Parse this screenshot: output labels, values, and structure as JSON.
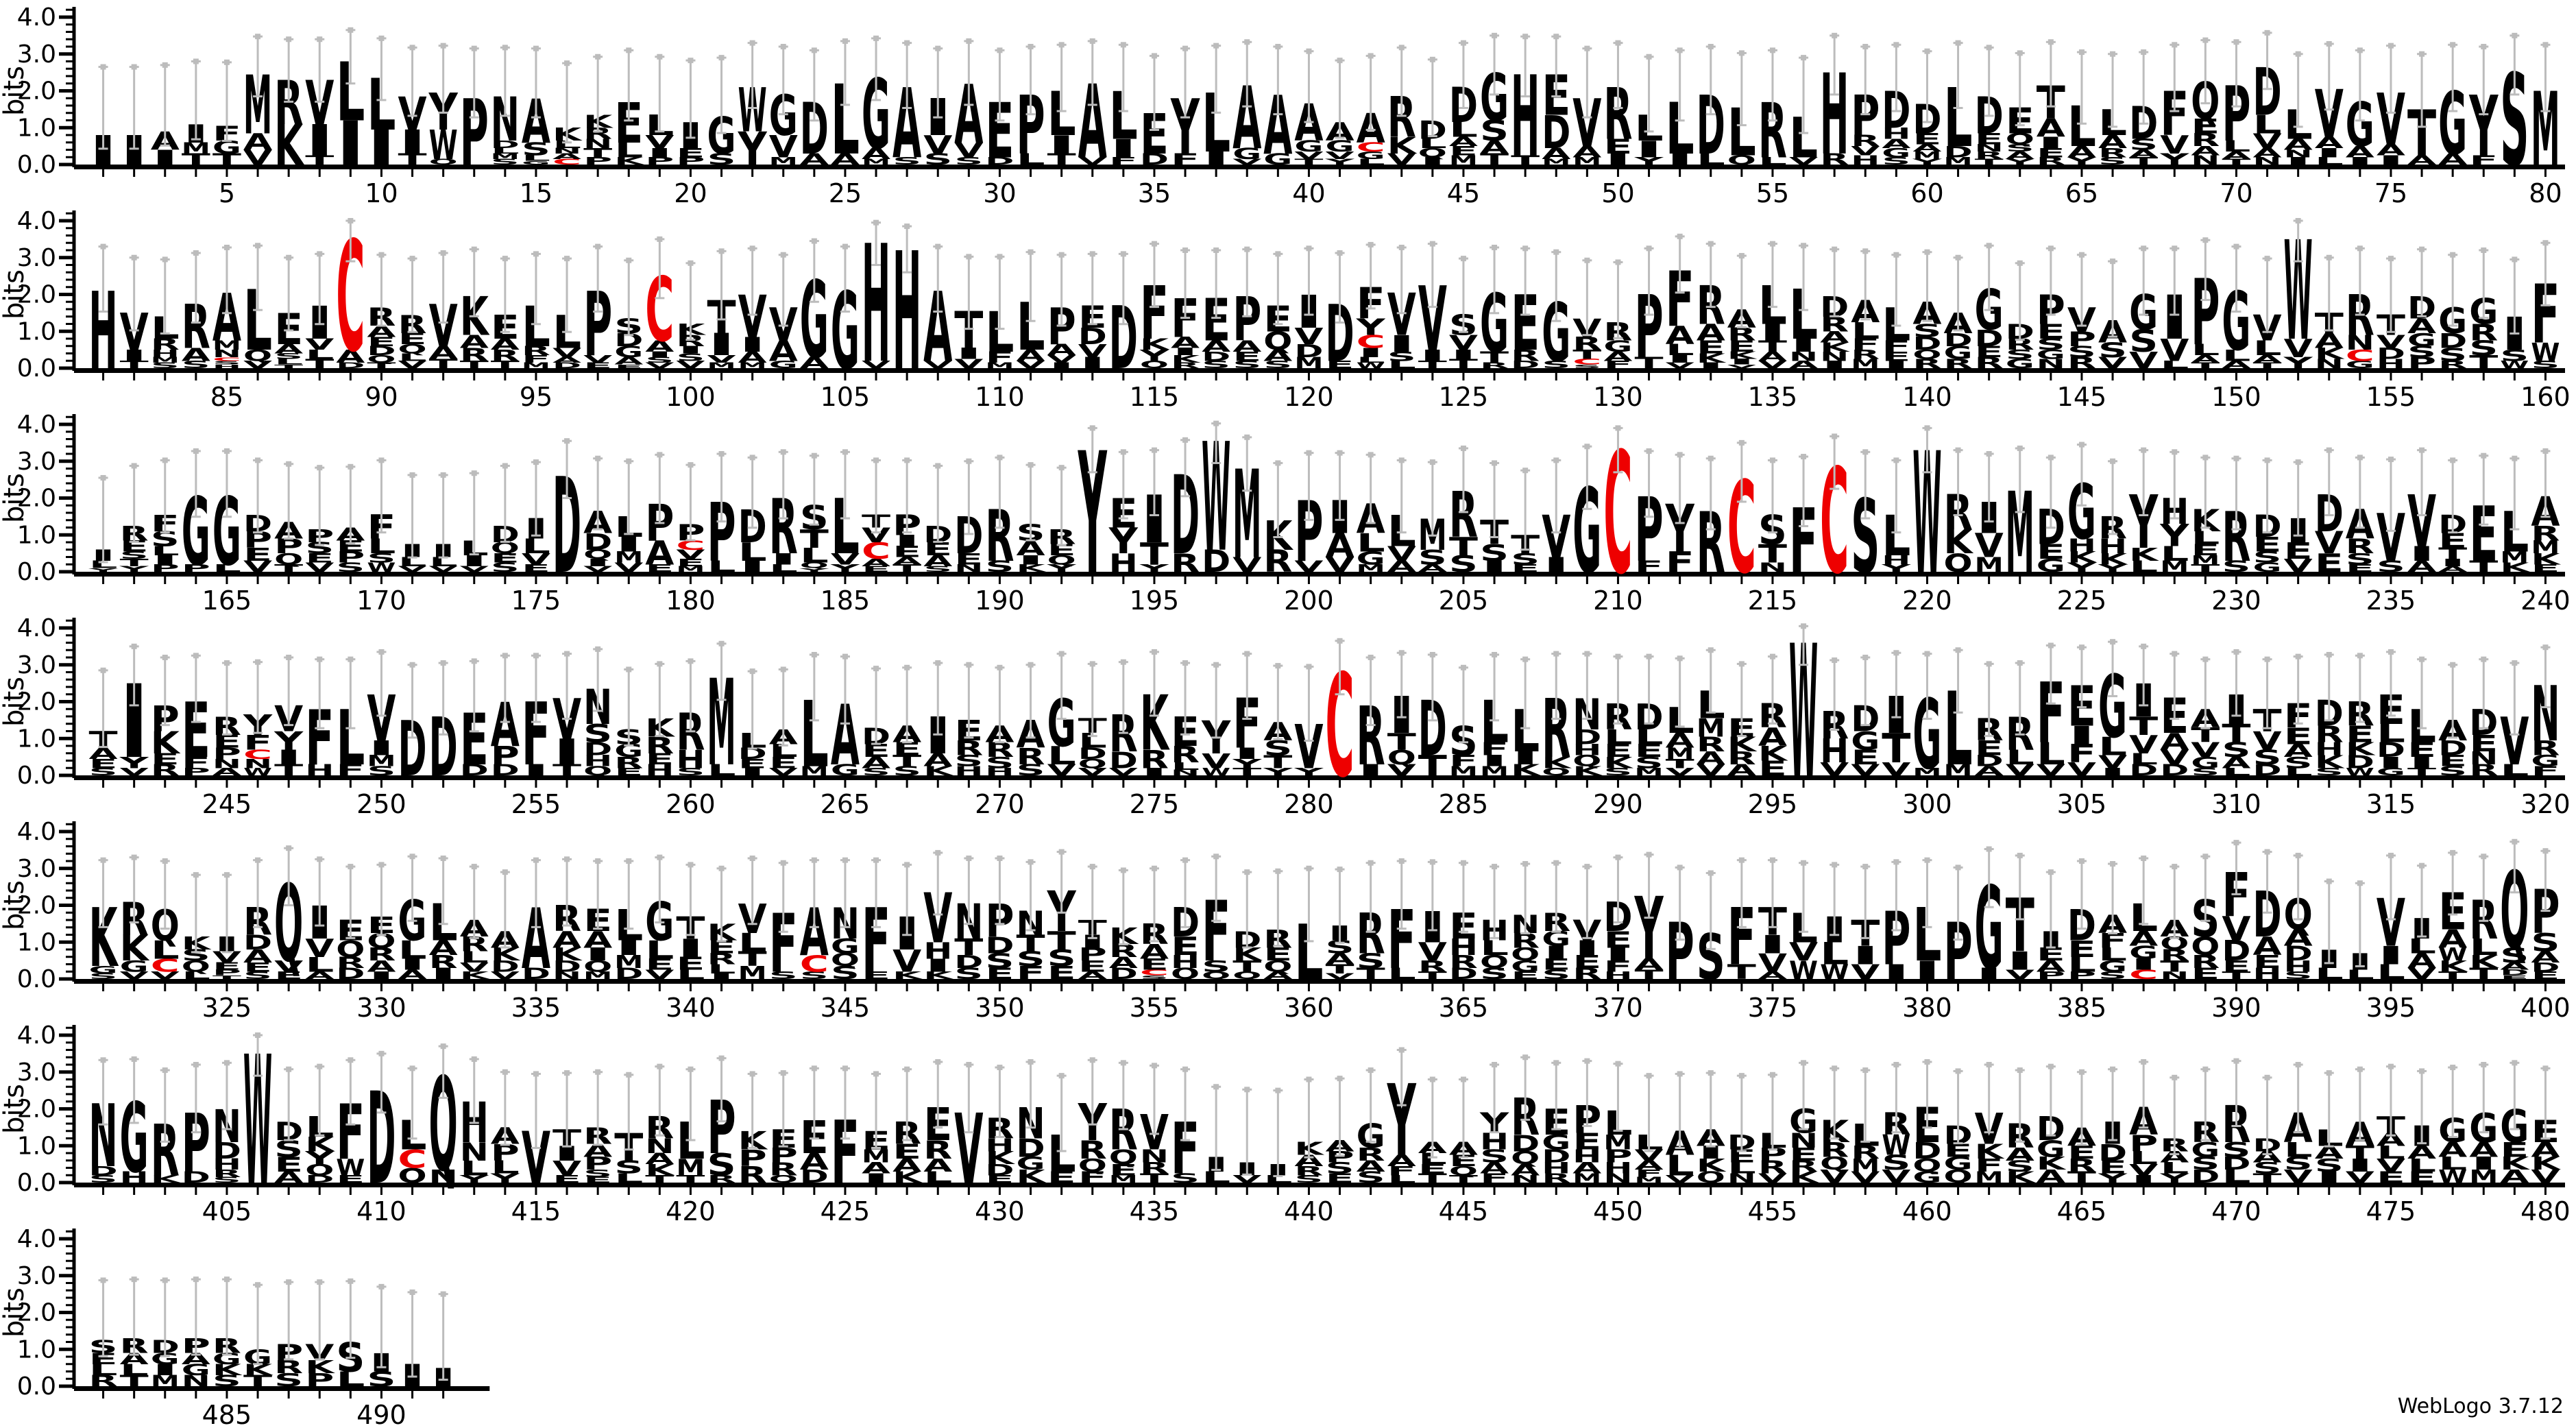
{
  "watermark": "WebLogo 3.7.12",
  "colors": {
    "letter_default": "#000000",
    "letter_C": "#ee0000",
    "errorbar": "#bcbcbc",
    "axis": "#000000"
  },
  "chart_data": {
    "type": "sequence-logo",
    "ylabel": "bits",
    "yticks": [
      "0.0",
      "1.0",
      "2.0",
      "3.0",
      "4.0"
    ],
    "ylim": [
      0,
      4.3
    ],
    "xtick_step": 5,
    "grid": false,
    "legend": "none",
    "rows": [
      {
        "start": 1,
        "stacks": [
          "I:0.8",
          "I:0.8",
          "A:0.5,I:0.4",
          "I:0.5,M:0.3,T:0.3",
          "F:0.4,G:0.35,T:0.3",
          "M:1.6,A:0.45,V:0.4",
          "R:1.2,K:1.1",
          "V:1.2,I:0.85,T:0.25",
          "L:1.6,I:1.2",
          "L:1.4,I:0.95",
          "V:0.9,I:0.65,T:0.3",
          "Y:1.0,W:0.8,Q:0.15",
          "P:1.8",
          "N:1.2,D:0.2,L:0.15,M:0.15,S:0.15",
          "A:1.2,S:0.35,L:0.15,G:0.1",
          "K:0.35,L:0.2,N:0.15,A:0.15,C:0.15",
          "K:0.35,R:0.3,N:0.25,T:0.25,P:0.2",
          "E:1.1,L:0.4,K:0.2",
          "L:0.55,V:0.35,I:0.25,P:0.2",
          "I:0.7,E:0.25,P:0.2",
          "G:1.0,S:0.3",
          "W:1.2,Y:0.9",
          "G:1.1,V:0.6,M:0.2",
          "D:1.4,A:0.3",
          "L:1.9,A:0.3",
          "G:1.9,A:0.3,M:0.15",
          "A:1.9,S:0.2",
          "I:1.0,V:0.5,S:0.3",
          "A:1.6,V:0.4,S:0.2",
          "E:1.5,D:0.2",
          "P:1.6,L:0.3",
          "L:1.2,I:0.5,T:0.3",
          "A:2.0,V:0.2",
          "L:1.3,I:0.5,F:0.2",
          "E:1.1,D:0.3",
          "Y:1.5,F:0.3",
          "L:1.6,I:0.35",
          "A:1.7,G:0.3,V:0.15",
          "A:1.6,G:0.3",
          "A:1.0,G:0.3,V:0.2,T:0.15",
          "A:0.5,G:0.3,V:0.2,Y:0.15",
          "A:0.8,C:0.25,G:0.2,L:0.15",
          "R:1.1,K:0.45,V:0.3",
          "D:0.5,L:0.25,Q:0.25,I:0.2",
          "D:0.95,L:0.4,A:0.25,E:0.25,M:0.25",
          "G:1.3,S:0.55,A:0.35,T:0.3",
          "H:2.2,T:0.25",
          "E:1.1,D:0.9,A:0.3,M:0.15",
          "V:1.3,A:0.3,M:0.2",
          "R:1.4,E:0.4,I:0.3",
          "L:0.7,I:0.45,Y:0.2",
          "L:1.4,I:0.3",
          "D:1.6,L:0.3",
          "L:1.3,Q:0.25",
          "R:1.5,L:0.2",
          "L:1.1,V:0.2",
          "H:2.2,R:0.3",
          "P:1.1,R:0.3,V:0.25,H:0.25",
          "D:1.0,H:0.3,A:0.25,G:0.25,S:0.2",
          "D:0.8,E:0.3,A:0.2,M:0.2,Y:0.15",
          "L:1.6,D:0.3,M:0.2",
          "D:1.0,E:0.3,N:0.2,R:0.2,T:0.15",
          "E:0.7,Q:0.3,S:0.2,A:0.2,Y:0.15",
          "T:0.9,A:0.5,I:0.3,E:0.25,R:0.2",
          "L:1.1,A:0.3,Y:0.2",
          "L:0.7,A:0.35,R:0.25,S:0.2",
          "D:0.9,S:0.3,A:0.2,T:0.2",
          "F:1.2,V:0.5,Y:0.3",
          "Q:1.0,E:0.4,R:0.35,A:0.25,N:0.25",
          "P:1.5,L:0.3,A:0.2,T:0.15",
          "D:1.3,L:0.5,V:0.4,A:0.25,N:0.2",
          "L:0.8,A:0.3,N:0.2,I:0.2",
          "V:1.3,A:0.3,I:0.25,L:0.2",
          "G:1.2,A:0.3,I:0.2",
          "V:1.4,A:0.3,I:0.25",
          "T:1.25,A:0.25",
          "G:1.7,A:0.3",
          "Y:1.65,F:0.25",
          "S:2.5",
          "M:2.0"
        ]
      },
      {
        "start": 81,
        "stacks": [
          "H:2.1",
          "V:1.0,I:0.3,T:0.2",
          "L:0.6,R:0.3,H:0.2,M:0.15,S:0.15",
          "R:1.2,A:0.35,S:0.2",
          "A:1.3,M:0.25,N:0.2,C:0.1,S:0.1,H:0.1",
          "L:1.65,Q:0.3,V:0.2",
          "E:0.85,A:0.25,S:0.15,L:0.15,T:0.1",
          "I:0.9,V:0.3,L:0.25,T:0.25",
          "C:3.0,A:0.35,D:0.15",
          "R:0.5,A:0.3,E:0.25,D:0.25,Q:0.2,T:0.15",
          "R:0.5,E:0.3,Q:0.25,L:0.2,V:0.2",
          "V:1.15,A:0.35,T:0.25",
          "K:1.05,A:0.35,R:0.35,T:0.2",
          "E:0.65,A:0.3,R:0.3,T:0.2",
          "L:1.1,R:0.25,F:0.2,M:0.15",
          "L:0.9,V:0.25,A:0.15,D:0.15",
          "P:1.75,V:0.2,E:0.15",
          "S:0.4,D:0.35,G:0.3,A:0.2,E:0.1",
          "C:1.75,A:0.3,I:0.15,S:0.15,V:0.15",
          "K:0.3,R:0.3,I:0.2,S:0.2,V:0.2",
          "T:0.9,I:0.6,V:0.2,M:0.15",
          "V:1.15,I:0.4,A:0.3,M:0.15",
          "V:0.9,A:0.55,G:0.2",
          "G:2.1,A:0.3",
          "G:2.1",
          "H:3.2,V:0.2",
          "H:3.2",
          "A:1.9,V:0.2",
          "T:1.0,I:0.3,V:0.25",
          "L:1.1,F:0.3,M:0.15",
          "L:1.3,A:0.3,V:0.2",
          "P:1.0,A:0.3,V:0.2,I:0.15",
          "E:0.6,D:0.45,V:0.35,I:0.3",
          "D:1.7",
          "F:1.45,K:0.3,Y:0.3,Q:0.2",
          "F:1.05,A:0.3,I:0.2,K:0.2,R:0.15",
          "E:1.15,A:0.3,D:0.25,S:0.2",
          "P:1.2,A:0.3,E:0.25,S:0.2",
          "E:0.7,Q:0.5,A:0.3,S:0.2",
          "I:0.9,V:0.45,D:0.35,M:0.3",
          "D:1.55,E:0.2",
          "F:0.85,Y:0.45,C:0.35,I:0.25,L:0.15,W:0.15",
          "V:1.15,I:0.45,S:0.25,L:0.2",
          "V:1.75,I:0.3,T:0.2",
          "S:0.55,V:0.4,I:0.25,T:0.25",
          "G:1.6,T:0.3,R:0.15",
          "E:1.5,R:0.3,D:0.2",
          "G:1.6,S:0.2",
          "V:0.5,R:0.35,T:0.25,C:0.15,S:0.1",
          "R:0.5,G:0.3,A:0.25,F:0.2",
          "P:1.7,T:0.3",
          "F:1.5,A:0.5,L:0.3,I:0.2,V:0.15",
          "R:1.05,A:0.45,E:0.35,K:0.25,I:0.15",
          "A:0.5,R:0.35,E:0.3,K:0.2,I:0.15,V:0.1",
          "L:1.05,I:0.45,T:0.3,A:0.25,V:0.2",
          "L:1.35,I:0.35,N:0.25,A:0.2",
          "D:0.55,R:0.4,A:0.3,K:0.25,N:0.25,I:0.2",
          "A:0.6,L:0.45,F:0.3,R:0.25,M:0.25",
          "L:0.9,F:0.3,E:0.25,I:0.2",
          "A:0.6,S:0.35,D:0.35,Q:0.25,R:0.25",
          "A:0.55,D:0.35,G:0.35,R:0.25",
          "G:1.1,D:0.45,E:0.3,R:0.3",
          "D:0.4,R:0.3,S:0.25,G:0.25",
          "P:0.8,E:0.4,S:0.3,G:0.25,N:0.25",
          "V:0.65,P:0.4,S:0.3,R:0.3",
          "A:0.6,S:0.4,V:0.3",
          "G:0.95,S:0.6,V:0.45",
          "I:1.2,V:0.6,L:0.2",
          "P:1.8,L:0.3,A:0.2,T:0.15",
          "G:1.6,L:0.3,A:0.2",
          "V:0.7,L:0.4,A:0.2,T:0.15",
          "W:2.7,V:0.5,Y:0.3",
          "T:0.55,A:0.4,K:0.3,N:0.25",
          "R:1.1,N:0.4,C:0.3,G:0.2",
          "T:0.55,V:0.35,D:0.3,H:0.25",
          "D:0.6,A:0.4,G:0.35,S:0.3,P:0.3",
          "G:0.7,D:0.4,S:0.35,R:0.2",
          "G:0.7,R:0.45,S:0.4,T:0.35",
          "I:0.9,S:0.3,W:0.2",
          "F:1.6,W:0.5,S:0.2"
        ]
      },
      {
        "start": 161,
        "stacks": [
          "I:0.3,L:0.2,Y:0.1",
          "R:0.4,E:0.3,S:0.2,T:0.2,Y:0.15",
          "F:0.45,S:0.4,L:0.25,I:0.25,P:0.2",
          "G:1.85,P:0.2",
          "G:1.85,L:0.2",
          "D:0.45,P:0.45,E:0.35,V:0.3",
          "A:0.45,P:0.4,Q:0.3,T:0.2",
          "P:0.35,S:0.3,E:0.25,V:0.25",
          "A:0.35,E:0.3,P:0.3,S:0.25",
          "F:0.65,L:0.4,S:0.25,W:0.25",
          "I:0.35,L:0.25,V:0.15",
          "I:0.35,L:0.25,V:0.15",
          "L:0.4,I:0.3,V:0.15",
          "D:0.45,Q:0.3,E:0.25,S:0.25",
          "I:0.55,L:0.4,V:0.3,E:0.2",
          "D:2.6",
          "A:0.6,D:0.45,Q:0.25,I:0.2,V:0.15",
          "L:0.55,I:0.4,M:0.3,V:0.25",
          "P:1.0,A:0.65,E:0.2",
          "P:0.45,C:0.25,V:0.25,E:0.2,M:0.15",
          "P:1.6,L:0.3",
          "D:0.9,L:0.5,I:0.3",
          "R:1.5,I:0.3,L:0.2",
          "S:0.65,T:0.5,L:0.4,Q:0.15,Y:0.1",
          "L:1.5,V:0.3,Y:0.2",
          "T:0.35,V:0.4,C:0.45,A:0.2,E:0.15",
          "P:0.55,I:0.3,E:0.3,A:0.2,T:0.2",
          "D:0.45,E:0.35,A:0.3,S:0.15",
          "D:1.0,E:0.3,N:0.2",
          "R:1.4,S:0.3",
          "S:0.45,A:0.4,I:0.25,K:0.2",
          "R:0.4,E:0.3,Q:0.25,Y:0.2",
          "Y:3.3",
          "E:0.8,Y:0.7,H:0.5",
          "I:1.3,T:0.6,Y:0.2",
          "D:2.15,R:0.5",
          "W:2.95,D:0.6",
          "M:2.4,V:0.4",
          "K:0.8,R:0.6",
          "P:1.65,V:0.3",
          "I:0.9,A:0.65,V:0.4",
          "A:0.8,L:0.5,G:0.35,M:0.2",
          "L:0.85,V:0.4,A:0.3",
          "M:0.85,S:0.4,A:0.2",
          "R:1.25,T:0.5,S:0.45",
          "T:0.65,S:0.45,I:0.3",
          "T:0.5,S:0.3,E:0.2",
          "V:1.15,I:0.4",
          "G:2.3",
          "C:3.3",
          "P:1.75,F:0.3",
          "Y:1.3,F:0.55",
          "R:1.65",
          "C:2.5",
          "S:0.8,T:0.5,N:0.25",
          "F:1.75",
          "C:2.85",
          "S:2.0",
          "L:1.1,H:0.25,Y:0.2",
          "W:3.3",
          "R:0.95,K:0.65,Q:0.5",
          "I:0.85,V:0.65,M:0.4",
          "M:2.2",
          "D:0.95,E:0.4,G:0.35",
          "G:1.5,H:0.35,K:0.3,Y:0.25",
          "R:0.6,H:0.4,K:0.3,Y:0.2",
          "Y:1.45,K:0.35,L:0.3",
          "H:0.7,Y:0.6,L:0.4,M:0.3",
          "K:0.6,L:0.35,E:0.3,M:0.25,T:0.2",
          "R:1.35,S:0.3",
          "D:0.6,E:0.4,S:0.3,G:0.25",
          "I:0.65,E:0.45,V:0.35",
          "D:1.0,V:0.6,E:0.5",
          "A:0.8,R:0.4,S:0.3,E:0.2",
          "V:1.3,S:0.3",
          "V:1.4,I:0.4,A:0.3",
          "D:0.5,E:0.4,T:0.3,I:0.2,A:0.15",
          "E:1.5,T:0.3",
          "L:1.1,M:0.3,K:0.25",
          "A:0.8,R:0.4,M:0.35,K:0.3,E:0.2"
        ]
      },
      {
        "start": 241,
        "stacks": [
          "T:0.45,A:0.3,E:0.25,S:0.2",
          "I:2.0,Y:0.3,V:0.2",
          "P:0.7,K:0.6,E:0.3,R:0.3",
          "E:1.5,F:0.3,P:0.2",
          "R:0.5,E:0.35,P:0.3,N:0.25,A:0.2",
          "Y:0.55,F:0.4,C:0.25,N:0.25,W:0.2",
          "V:0.7,Y:0.5,I:0.4,T:0.3",
          "F:1.5,H:0.3",
          "L:1.5,F:0.3",
          "V:1.25,I:0.4,M:0.3,S:0.25",
          "D:1.5",
          "D:1.6",
          "E:1.4,D:0.3",
          "A:1.2,P:0.5,D:0.3",
          "F:1.7,I:0.3",
          "V:1.1,I:0.7,T:0.3",
          "N:0.95,S:0.5,D:0.35,H:0.3,Q:0.25",
          "S:0.4,G:0.35,R:0.3,E:0.2",
          "K:0.5,R:0.45,E:0.3,H:0.3",
          "R:1.0,H:0.5,S:0.2",
          "M:2.35,L:0.3",
          "L:0.4,D:0.3,E:0.25,I:0.2",
          "A:0.4,L:0.35,E:0.3,V:0.2",
          "L:1.8,M:0.25",
          "A:1.65,G:0.3",
          "D:0.45,E:0.35,A:0.3,S:0.2",
          "A:0.45,E:0.35,T:0.3,S:0.25",
          "I:1.0,A:0.35,K:0.25",
          "E:0.55,R:0.4,S:0.3,H:0.25",
          "A:0.45,R:0.4,S:0.3,H:0.2",
          "A:0.75,R:0.45,S:0.3",
          "G:1.3,L:0.5,V:0.3",
          "T:0.4,L:0.4,D:0.3,Q:0.25,V:0.2",
          "R:1.0,D:0.45,V:0.2",
          "K:1.5,R:0.5,I:0.2",
          "E:0.8,R:0.45,L:0.2,N:0.15",
          "Y:0.9,V:0.4,W:0.2",
          "F:1.35,I:0.3,Y:0.25,T:0.2",
          "A:0.5,S:0.4,T:0.35,Y:0.2",
          "V:1.2,Y:0.2",
          "C:2.8",
          "R:1.6,I:0.3",
          "I:1.0,T:0.45,Q:0.4,V:0.3",
          "D:1.5,T:0.55",
          "S:0.8,F:0.3,M:0.25",
          "L:1.15,F:0.35,I:0.3,M:0.25",
          "L:1.15,I:0.35,K:0.3",
          "R:1.6,K:0.3,Q:0.2",
          "N:0.85,D:0.4,H:0.3,Q:0.3,K:0.25",
          "R:0.7,L:0.4,E:0.35,K:0.3,S:0.2",
          "D:0.7,L:0.4,E:0.35,S:0.3,M:0.2",
          "L:0.7,A:0.4,M:0.3,T:0.25,V:0.2",
          "L:0.75,M:0.5,R:0.4,A:0.35,V:0.3",
          "E:0.5,K:0.4,R:0.35,A:0.3",
          "R:0.65,A:0.5,K:0.4,E:0.4",
          "W:3.6",
          "R:0.75,H:0.65,V:0.35",
          "D:0.7,G:0.5,E:0.4,V:0.3",
          "I:1.0,T:0.8,V:0.35",
          "G:1.9,M:0.2",
          "L:2.0,M:0.3",
          "R:0.6,E:0.4,D:0.3,A:0.25",
          "R:0.9,L:0.4,V:0.3",
          "F:1.65,L:0.6,V:0.3",
          "E:1.1,I:0.5,F:0.5,V:0.35",
          "G:1.7,L:0.5,V:0.35,I:0.2",
          "I:0.9,T:0.5,V:0.5,L:0.3,D:0.3",
          "E:0.95,A:0.45,V:0.4,D:0.3",
          "A:0.5,T:0.4,V:0.4,G:0.3,S:0.2",
          "I:0.8,T:0.5,S:0.4,A:0.3,L:0.2",
          "T:0.6,V:0.5,S:0.4,D:0.3",
          "F:0.65,E:0.45,A:0.35,S:0.3,L:0.2",
          "D:0.7,R:0.45,H:0.35,K:0.35,S:0.2",
          "R:0.65,E:0.45,K:0.35,D:0.35,W:0.2",
          "E:0.8,L:0.5,D:0.4,I:0.3,G:0.2",
          "L:0.9,E:0.4,I:0.3,T:0.2",
          "A:0.55,D:0.4,E:0.3,S:0.25",
          "D:0.7,E:0.45,N:0.35,R:0.3",
          "V:1.3,L:0.3",
          "N:1.5,R:0.4,G:0.3,F:0.25"
        ]
      },
      {
        "start": 321,
        "stacks": [
          "K:1.6,G:0.2,S:0.15",
          "R:0.9,K:0.7,G:0.3,V:0.2",
          "Q:0.85,L:0.5,C:0.35,V:0.2",
          "K:0.35,S:0.3,Q:0.3,L:0.2",
          "I:0.4,V:0.3,E:0.2,P:0.15,T:0.1",
          "R:0.75,D:0.4,A:0.35,E:0.25,S:0.2",
          "Q:2.1,V:0.3,E:0.2",
          "I:0.9,V:0.5,L:0.4,A:0.2",
          "E:0.55,Q:0.45,R:0.3,D:0.3",
          "E:0.45,Q:0.4,R:0.35,A:0.3,I:0.2",
          "G:1.1,L:0.5,I:0.3,A:0.25",
          "L:1.0,A:0.4,R:0.35,I:0.3",
          "A:0.45,R:0.4,L:0.3,V:0.25,K:0.2",
          "A:0.45,K:0.35,D:0.3,V:0.2",
          "A:1.65,D:0.3",
          "R:0.7,A:0.45,K:0.35,D:0.3,N:0.2",
          "E:0.6,A:0.45,I:0.35,Q:0.3,M:0.2",
          "L:0.85,I:0.4,M:0.35,D:0.3",
          "G:1.05,L:0.5,E:0.3,V:0.25",
          "T:0.6,I:0.5,E:0.35,L:0.25",
          "K:0.45,E:0.35,R:0.3,L:0.25,I:0.15",
          "V:0.8,L:0.5,T:0.4,M:0.35",
          "F:1.6,S:0.2",
          "A:1.3,C:0.45,S:0.2",
          "N:0.85,G:0.4,Q:0.35,S:0.35",
          "F:1.75,E:0.2",
          "I:0.9,V:0.6,K:0.2",
          "V:1.35,H:0.45,I:0.35,K:0.2",
          "N:0.95,T:0.45,D:0.35,S:0.3",
          "P:0.9,D:0.45,S:0.4,E:0.3",
          "N:0.65,T:0.45,S:0.4,F:0.35",
          "Y:1.1,T:0.5,S:0.45,E:0.35",
          "T:0.4,I:0.35,P:0.35,E:0.3,A:0.2",
          "K:0.45,R:0.35,A:0.3,D:0.3",
          "R:0.55,A:0.4,E:0.3,C:0.15,S:0.1",
          "D:0.8,E:0.5,H:0.35,Q:0.3",
          "F:1.65,S:0.3,Q:0.2",
          "D:0.45,K:0.35,T:0.3,Q:0.2",
          "R:0.5,E:0.35,Q:0.3,A:0.2",
          "L:1.5",
          "I:0.4,S:0.35,A:0.3,T:0.25,V:0.15",
          "R:1.1,S:0.4,T:0.3",
          "F:1.6,L:0.3",
          "I:0.85,V:0.5,R:0.3,T:0.2",
          "E:0.7,H:0.45,R:0.35,D:0.3",
          "H:0.55,L:0.4,Q:0.35,S:0.3",
          "N:0.5,R:0.4,Q:0.35,G:0.3,E:0.2",
          "R:0.5,G:0.4,I:0.35,E:0.3,S:0.25",
          "V:0.55,I:0.4,E:0.35,R:0.3",
          "D:0.8,E:0.45,I:0.35,F:0.3,H:0.2",
          "Y:1.7,A:0.3,T:0.25",
          "P:1.55",
          "S:1.25",
          "F:1.55,T:0.4",
          "T:0.75,I:0.5,V:0.5,A:0.2",
          "L:0.8,V:0.5,W:0.5",
          "I:0.7,L:0.6,W:0.4",
          "T:0.7,I:0.5,V:0.4",
          "P:1.45,I:0.4",
          "L:1.45,I:0.5",
          "P:1.55",
          "G:2.25,I:0.3",
          "T:1.45,I:0.5,V:0.25",
          "I:0.45,E:0.35,A:0.3,P:0.2",
          "D:0.85,E:0.45,L:0.4,P:0.2",
          "A:0.5,F:0.4,L:0.35,G:0.3,S:0.2",
          "L:0.75,A:0.4,G:0.35,I:0.3,C:0.25",
          "A:0.45,Q:0.35,R:0.3,T:0.3,N:0.2",
          "S:1.0,Q:0.5,R:0.35,E:0.3",
          "F:1.2,V:0.65,D:0.55,E:0.3,T:0.2",
          "D:1.25,A:0.5,E:0.35,H:0.3",
          "Q:0.85,A:0.45,D:0.4,H:0.3,S:0.2",
          "I:0.5,L:0.3",
          "I:0.45,L:0.25",
          "V:1.3,I:0.5,L:0.4",
          "I:0.55,L:0.4,A:0.4,V:0.3",
          "E:1.0,A:0.5,W:0.35,K:0.3,T:0.2",
          "R:1.05,L:0.45,K:0.35,T:0.3",
          "Q:2.1,S:0.4,A:0.2,D:0.15,E:0.1",
          "P:1.2,S:0.5,A:0.3,D:0.25,E:0.2"
        ]
      },
      {
        "start": 401,
        "stacks": [
          "N:1.7,D:0.25,S:0.2",
          "G:1.9,H:0.3",
          "R:1.4,K:0.2",
          "P:1.6,D:0.3",
          "N:0.9,D:0.45,H:0.3,R:0.2,S:0.15",
          "W:3.5",
          "D:0.5,S:0.45,E:0.4,A:0.3",
          "L:0.55,K:0.4,Y:0.35,Q:0.3,D:0.2",
          "F:1.5,W:0.45,E:0.2",
          "D:2.5",
          "L:0.8,C:0.5,Q:0.4",
          "Q:2.55,N:0.35",
          "H:1.1,N:0.5,L:0.4,Y:0.2",
          "A:0.45,P:0.45,L:0.35,Y:0.25",
          "V:1.4",
          "T:0.45,I:0.4,V:0.4,E:0.2",
          "R:0.45,A:0.35,P:0.35,S:0.2,E:0.15",
          "T:0.75,S:0.35,L:0.25",
          "R:0.6,N:0.4,A:0.3,K:0.3,T:0.2",
          "L:1.0,M:0.45,T:0.2",
          "P:1.45,S:0.6,R:0.2",
          "K:0.5,P:0.45,R:0.45",
          "E:0.5,P:0.4,R:0.35,Q:0.2",
          "E:0.9,A:0.45,D:0.35",
          "F:1.7",
          "E:0.5,M:0.35,A:0.3,I:0.25",
          "R:0.6,E:0.4,A:0.35,K:0.3",
          "E:0.9,R:0.5,A:0.35,L:0.3",
          "V:1.9",
          "R:0.55,H:0.35,K:0.35,D:0.3,E:0.2",
          "N:0.85,D:0.5,G:0.35,K:0.35",
          "L:1.0,E:0.3",
          "Y:1.0,R:0.5,Q:0.35,F:0.3",
          "R:1.1,Q:0.4,E:0.3,M:0.2",
          "V:0.95,N:0.35,R:0.3,T:0.25",
          "F:1.4,S:0.25",
          "I:0.4,L:0.3",
          "I:0.35,V:0.2",
          "I:0.3,L:0.2",
          "K:0.35,A:0.3,R:0.25,S:0.2",
          "A:0.3,P:0.3,S:0.3,E:0.25",
          "G:0.65,R:0.35,A:0.3,S:0.3",
          "Y:1.95,A:0.3,F:0.25,L:0.2",
          "A:0.3,L:0.3,E:0.25,T:0.25",
          "A:0.35,E:0.3,Q:0.25,T:0.2",
          "Y:0.55,H:0.45,S:0.35,A:0.3,F:0.25",
          "R:1.0,D:0.45,Q:0.35,A:0.3,N:0.2",
          "E:0.7,G:0.4,D:0.35,H:0.3,R:0.25",
          "P:0.75,E:0.45,H:0.35,A:0.3,M:0.25",
          "L:0.65,M:0.4,P:0.35,H:0.3,N:0.25",
          "L:0.4,V:0.3,A:0.25,F:0.2,M:0.15",
          "A:0.65,L:0.55,V:0.2",
          "A:0.45,I:0.35,K:0.35,Q:0.3",
          "D:0.4,E:0.35,L:0.3,N:0.25",
          "L:0.4,P:0.35,R:0.35,V:0.25",
          "G:0.65,N:0.4,E:0.35,R:0.3,K:0.3",
          "K:0.6,R:0.4,Q:0.35,V:0.35",
          "L:0.6,R:0.35,M:0.35,V:0.3",
          "R:0.6,W:0.55,S:0.4,V:0.35",
          "E:0.95,D:0.45,Q:0.35,G:0.3",
          "D:0.5,E:0.35,G:0.35,Q:0.35",
          "V:0.85,K:0.4,F:0.35,M:0.3",
          "R:0.65,A:0.35,S:0.3,K:0.3",
          "D:0.65,G:0.45,K:0.35,A:0.35",
          "A:0.5,E:0.35,R:0.35,T:0.3",
          "I:0.6,D:0.45,E:0.35,Y:0.25",
          "A:0.75,P:0.45,L:0.35,V:0.3,I:0.2",
          "R:0.35,A:0.3,L:0.3,Y:0.25",
          "R:0.55,G:0.4,S:0.35,D:0.35",
          "R:1.0,S:0.4,D:0.35,L:0.35",
          "D:0.35,A:0.3,S:0.3,T:0.25",
          "A:0.8,L:0.4,S:0.35,V:0.35",
          "L:0.45,A:0.35,S:0.35,I:0.3",
          "A:0.65,T:0.35,I:0.35,V:0.3",
          "T:0.45,A:0.35,L:0.35,V:0.35,E:0.3",
          "I:0.55,A:0.35,L:0.35,E:0.3",
          "G:0.65,A:0.4,L:0.35,W:0.35",
          "G:0.8,A:0.4,I:0.35,M:0.35",
          "G:0.9,E:0.4,K:0.35,A:0.35",
          "E:0.6,A:0.4,K:0.35,V:0.35"
        ]
      },
      {
        "start": 481,
        "stacks": [
          "S:0.35,E:0.3,L:0.3,R:0.3",
          "R:0.4,A:0.3,L:0.3,T:0.3",
          "D:0.35,G:0.3,I:0.3,M:0.3",
          "P:0.4,A:0.3,G:0.3,N:0.3",
          "R:0.4,G:0.3,K:0.3,S:0.3",
          "G:0.4,K:0.3,T:0.3",
          "P:0.45,R:0.35,S:0.35",
          "V:0.45,K:0.35,P:0.35",
          "S:0.8,L:0.4",
          "I:0.5,S:0.4",
          "I:0.6",
          "I:0.5"
        ]
      }
    ]
  }
}
